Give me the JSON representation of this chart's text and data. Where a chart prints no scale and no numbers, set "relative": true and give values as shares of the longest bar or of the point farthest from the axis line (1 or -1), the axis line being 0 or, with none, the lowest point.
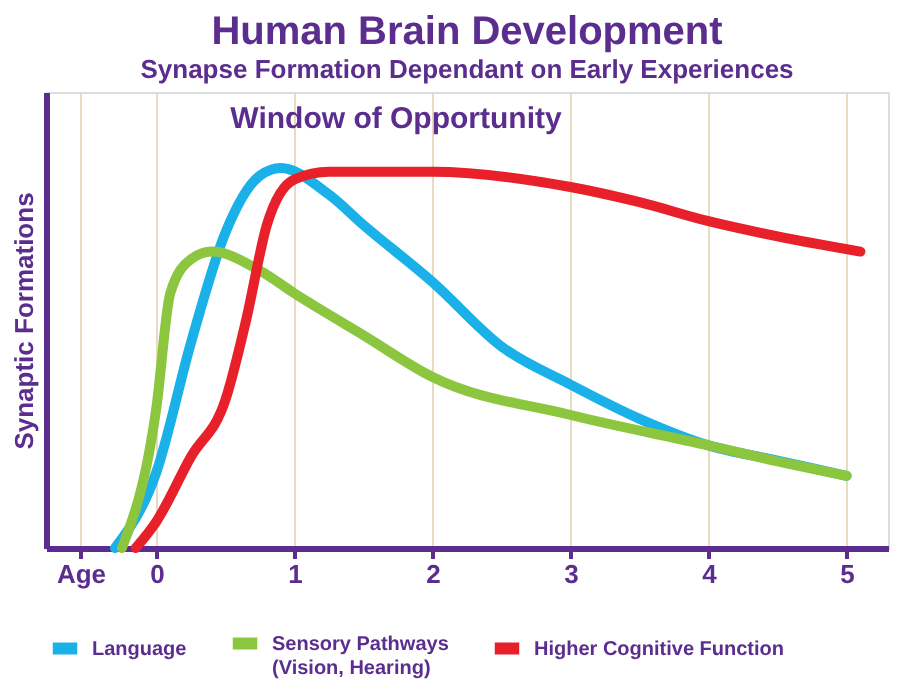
{
  "chart_data": {
    "type": "line",
    "title": "Human Brain Development",
    "subtitle": "Synapse Formation Dependant on Early Experiences",
    "ylabel": "Synaptic Formations",
    "annotations": [
      "Window of Opportunity"
    ],
    "relative": true,
    "xlim": [
      -0.8,
      5.3
    ],
    "xticks": [
      {
        "value": -0.55,
        "label": "Age"
      },
      0,
      1,
      2,
      3,
      4,
      5
    ],
    "grid": "x",
    "legend": "bottom",
    "marker": "none",
    "line_style": "solid",
    "series": [
      {
        "name": "Language",
        "color": "#1ab0e8",
        "x": [
          -0.3,
          0,
          0.25,
          0.5,
          0.75,
          0.9,
          1.25,
          1.5,
          2,
          2.5,
          3,
          3.5,
          4,
          4.5,
          5
        ],
        "values": [
          0,
          0.2,
          0.54,
          0.83,
          0.98,
          1,
          0.93,
          0.85,
          0.7,
          0.53,
          0.43,
          0.34,
          0.27,
          0.23,
          0.19
        ]
      },
      {
        "name": "Sensory Pathways (Vision, Hearing)",
        "color": "#8cc63f",
        "x": [
          -0.25,
          0,
          0.1,
          0.25,
          0.4,
          0.75,
          1,
          1.5,
          2,
          3,
          4,
          4.6,
          5
        ],
        "values": [
          0,
          0.37,
          0.67,
          0.76,
          0.78,
          0.73,
          0.67,
          0.56,
          0.45,
          0.35,
          0.27,
          0.22,
          0.19
        ]
      },
      {
        "name": "Higher Cognitive Function",
        "color": "#e8202a",
        "x": [
          -0.15,
          0,
          0.25,
          0.5,
          0.65,
          0.8,
          1,
          1.25,
          2,
          3,
          3.5,
          4,
          4.5,
          5.1
        ],
        "values": [
          0,
          0.07,
          0.24,
          0.39,
          0.6,
          0.85,
          0.97,
          0.99,
          0.99,
          0.95,
          0.91,
          0.86,
          0.82,
          0.78
        ]
      }
    ]
  }
}
